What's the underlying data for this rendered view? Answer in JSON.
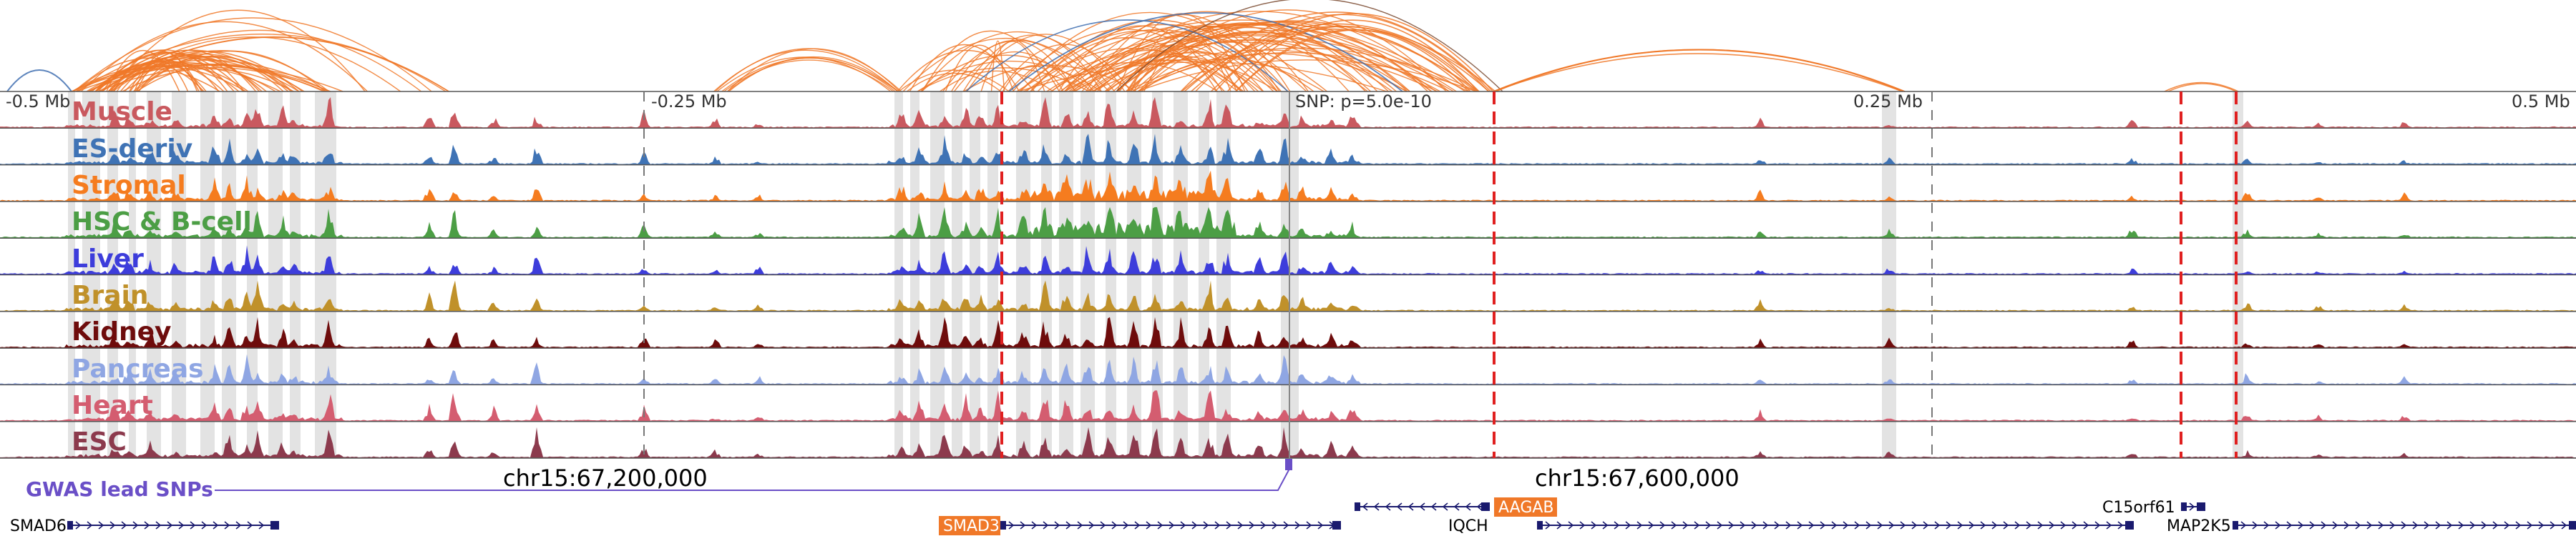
{
  "tracks": [
    {
      "name": "Muscle",
      "color": "#c9595f"
    },
    {
      "name": "ES-deriv",
      "color": "#3f73b5"
    },
    {
      "name": "Stromal",
      "color": "#f57c1f"
    },
    {
      "name": "HSC & B-cell",
      "color": "#4c9e45"
    },
    {
      "name": "Liver",
      "color": "#3d3ddb"
    },
    {
      "name": "Brain",
      "color": "#c0912a"
    },
    {
      "name": "Kidney",
      "color": "#6e0c0c"
    },
    {
      "name": "Pancreas",
      "color": "#8fa6e3"
    },
    {
      "name": "Heart",
      "color": "#d45d70"
    },
    {
      "name": "ESC",
      "color": "#8c3a4d"
    }
  ],
  "axis": {
    "tick_labels": [
      "-0.5 Mb",
      "-0.25 Mb",
      "SNP: p=5.0e-10",
      "0.25 Mb",
      "0.5 Mb"
    ]
  },
  "gwas": {
    "label": "GWAS lead SNPs",
    "color": "#6a4fc7"
  },
  "coordinates": [
    "chr15:67,200,000",
    "chr15:67,600,000"
  ],
  "genes": [
    {
      "name": "SMAD6",
      "highlighted": false
    },
    {
      "name": "SMAD3",
      "highlighted": true
    },
    {
      "name": "AAGAB",
      "highlighted": true
    },
    {
      "name": "IQCH",
      "highlighted": false
    },
    {
      "name": "C15orf61",
      "highlighted": false
    },
    {
      "name": "MAP2K5",
      "highlighted": false
    }
  ],
  "colors": {
    "loop": "#f07828",
    "loop_alt": "#3f6eb0",
    "highlight_region": "#d9d9d9",
    "snp_marker": "#e02020",
    "gene_body": "#1a1a6e",
    "gene_highlight": "#f07828"
  }
}
